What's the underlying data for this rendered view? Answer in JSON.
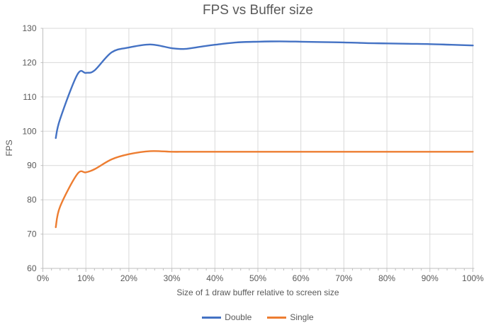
{
  "chart_data": {
    "type": "line",
    "title": "FPS vs Buffer size",
    "xlabel": "Size of 1 draw buffer relative to screen size",
    "ylabel": "FPS",
    "xlim": [
      0,
      100
    ],
    "ylim": [
      60,
      130
    ],
    "y_ticks": [
      60,
      70,
      80,
      90,
      100,
      110,
      120,
      130
    ],
    "x_tick_values": [
      0,
      10,
      20,
      30,
      40,
      50,
      60,
      70,
      80,
      90,
      100
    ],
    "x_tick_labels": [
      "0%",
      "10%",
      "20%",
      "30%",
      "40%",
      "50%",
      "60%",
      "70%",
      "80%",
      "90%",
      "100%"
    ],
    "x_minor_tick_step": 2,
    "grid": true,
    "smooth": true,
    "legend_position": "bottom",
    "x": [
      3,
      4,
      8,
      10,
      12,
      16,
      20,
      25,
      30,
      33,
      37,
      40,
      45,
      50,
      55,
      60,
      65,
      70,
      75,
      80,
      85,
      90,
      95,
      100
    ],
    "series": [
      {
        "name": "Double",
        "color": "#4472C4",
        "values": [
          98,
          103.5,
          116.5,
          117,
          117.7,
          123,
          124.4,
          125.3,
          124.2,
          124,
          124.7,
          125.2,
          125.9,
          126.1,
          126.2,
          126.1,
          126,
          125.9,
          125.7,
          125.6,
          125.5,
          125.4,
          125.2,
          125
        ]
      },
      {
        "name": "Single",
        "color": "#ED7D31",
        "values": [
          72,
          78,
          87.5,
          88,
          88.9,
          91.8,
          93.3,
          94.2,
          94,
          94,
          94,
          94,
          94,
          94,
          94,
          94,
          94,
          94,
          94,
          94,
          94,
          94,
          94,
          94
        ]
      }
    ],
    "styles": {
      "grid_color": "#D9D9D9",
      "axis_color": "#BFBFBF",
      "text_color": "#595959",
      "title_color": "#595959",
      "background": "#FFFFFF"
    }
  }
}
